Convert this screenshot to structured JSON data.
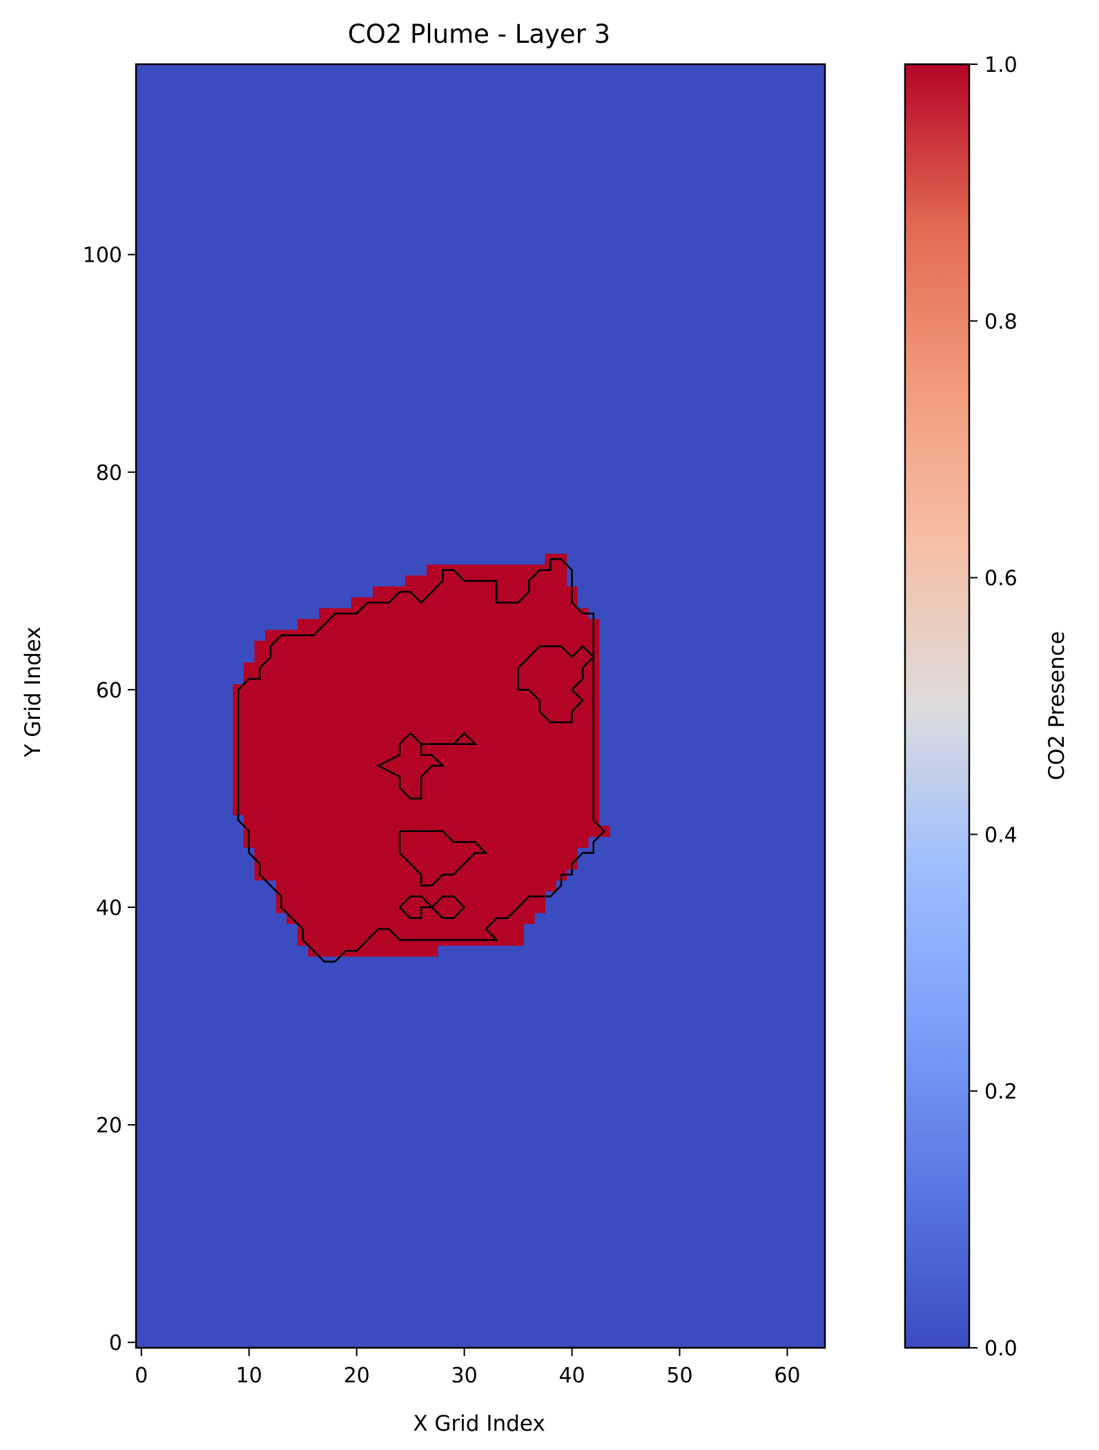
{
  "chart_data": {
    "type": "heatmap",
    "title": "CO2 Plume - Layer 3",
    "xlabel": "X Grid Index",
    "ylabel": "Y Grid Index",
    "xlim": [
      -0.5,
      63.5
    ],
    "ylim": [
      -0.5,
      117.5
    ],
    "xticks": [
      0,
      10,
      20,
      30,
      40,
      50,
      60
    ],
    "yticks": [
      0,
      20,
      40,
      60,
      80,
      100
    ],
    "grid": false,
    "colormap": "coolwarm",
    "colors": {
      "low": "#3b4cc0",
      "high": "#b40426",
      "outline": "#000000"
    },
    "colorbar": {
      "label": "CO2 Presence",
      "ticks": [
        0.0,
        0.2,
        0.4,
        0.6,
        0.8,
        1.0
      ],
      "tick_labels": [
        "0.0",
        "0.2",
        "0.4",
        "0.6",
        "0.8",
        "1.0"
      ],
      "range": [
        0.0,
        1.0
      ]
    },
    "plume_cells_value": 1.0,
    "background_value": 0.0,
    "plume_rows": [
      {
        "y": 36,
        "x0": 16,
        "x1": 27
      },
      {
        "y": 37,
        "x0": 15,
        "x1": 35
      },
      {
        "y": 38,
        "x0": 15,
        "x1": 35
      },
      {
        "y": 39,
        "x0": 14,
        "x1": 36
      },
      {
        "y": 40,
        "x0": 13,
        "x1": 37
      },
      {
        "y": 41,
        "x0": 13,
        "x1": 37
      },
      {
        "y": 42,
        "x0": 13,
        "x1": 38
      },
      {
        "y": 43,
        "x0": 11,
        "x1": 39
      },
      {
        "y": 44,
        "x0": 11,
        "x1": 40
      },
      {
        "y": 45,
        "x0": 11,
        "x1": 40
      },
      {
        "y": 46,
        "x0": 10,
        "x1": 41
      },
      {
        "y": 47,
        "x0": 10,
        "x1": 43
      },
      {
        "y": 48,
        "x0": 10,
        "x1": 42
      },
      {
        "y": 49,
        "x0": 9,
        "x1": 42
      },
      {
        "y": 50,
        "x0": 9,
        "x1": 42
      },
      {
        "y": 51,
        "x0": 9,
        "x1": 42
      },
      {
        "y": 52,
        "x0": 9,
        "x1": 42
      },
      {
        "y": 53,
        "x0": 9,
        "x1": 42
      },
      {
        "y": 54,
        "x0": 9,
        "x1": 42
      },
      {
        "y": 55,
        "x0": 9,
        "x1": 42
      },
      {
        "y": 56,
        "x0": 9,
        "x1": 42
      },
      {
        "y": 57,
        "x0": 9,
        "x1": 42
      },
      {
        "y": 58,
        "x0": 9,
        "x1": 42
      },
      {
        "y": 59,
        "x0": 9,
        "x1": 42
      },
      {
        "y": 60,
        "x0": 9,
        "x1": 42
      },
      {
        "y": 61,
        "x0": 10,
        "x1": 42
      },
      {
        "y": 62,
        "x0": 10,
        "x1": 42
      },
      {
        "y": 63,
        "x0": 11,
        "x1": 42
      },
      {
        "y": 64,
        "x0": 11,
        "x1": 42
      },
      {
        "y": 65,
        "x0": 12,
        "x1": 42
      },
      {
        "y": 66,
        "x0": 15,
        "x1": 42
      },
      {
        "y": 67,
        "x0": 17,
        "x1": 41
      },
      {
        "y": 68,
        "x0": 20,
        "x1": 40
      },
      {
        "y": 69,
        "x0": 22,
        "x1": 40
      },
      {
        "y": 70,
        "x0": 25,
        "x1": 39
      },
      {
        "y": 71,
        "x0": 27,
        "x1": 39
      },
      {
        "y": 72,
        "x0": 38,
        "x1": 39
      }
    ],
    "contours": [
      {
        "name": "outer",
        "points": [
          [
            18,
            35
          ],
          [
            17,
            35
          ],
          [
            16,
            36
          ],
          [
            15,
            37
          ],
          [
            15,
            38
          ],
          [
            14,
            39
          ],
          [
            13,
            40
          ],
          [
            13,
            41
          ],
          [
            12,
            42
          ],
          [
            11,
            43
          ],
          [
            11,
            44
          ],
          [
            10,
            45
          ],
          [
            10,
            46
          ],
          [
            10,
            47
          ],
          [
            9,
            48
          ],
          [
            9,
            50
          ],
          [
            9,
            60
          ],
          [
            10,
            61
          ],
          [
            11,
            61
          ],
          [
            11,
            62
          ],
          [
            12,
            63
          ],
          [
            12,
            64
          ],
          [
            13,
            65
          ],
          [
            16,
            65
          ],
          [
            17,
            66
          ],
          [
            18,
            67
          ],
          [
            20,
            67
          ],
          [
            21,
            68
          ],
          [
            23,
            68
          ],
          [
            24,
            69
          ],
          [
            25,
            69
          ],
          [
            26,
            68
          ],
          [
            27,
            69
          ],
          [
            28,
            70
          ],
          [
            28,
            71
          ],
          [
            29,
            71
          ],
          [
            30,
            70
          ],
          [
            32,
            70
          ],
          [
            33,
            70
          ],
          [
            33,
            69
          ],
          [
            33,
            68
          ],
          [
            35,
            68
          ],
          [
            36,
            69
          ],
          [
            36,
            70
          ],
          [
            37,
            71
          ],
          [
            38,
            71
          ],
          [
            38,
            72
          ],
          [
            39,
            72
          ],
          [
            40,
            71
          ],
          [
            40,
            70
          ],
          [
            40,
            68
          ],
          [
            41,
            67
          ],
          [
            42,
            67
          ],
          [
            42,
            66
          ],
          [
            42,
            60
          ],
          [
            42,
            48
          ],
          [
            43,
            47
          ],
          [
            42,
            46
          ],
          [
            42,
            45
          ],
          [
            41,
            45
          ],
          [
            40,
            44
          ],
          [
            40,
            43
          ],
          [
            39,
            43
          ],
          [
            39,
            42
          ],
          [
            38,
            41
          ],
          [
            37,
            41
          ],
          [
            36,
            41
          ],
          [
            35,
            40
          ],
          [
            34,
            39
          ],
          [
            33,
            39
          ],
          [
            32,
            38
          ],
          [
            33,
            37
          ],
          [
            31,
            37
          ],
          [
            30,
            37
          ],
          [
            26,
            37
          ],
          [
            24,
            37
          ],
          [
            23,
            38
          ],
          [
            22,
            38
          ],
          [
            21,
            37
          ],
          [
            20,
            36
          ],
          [
            19,
            36
          ],
          [
            18,
            35
          ]
        ]
      },
      {
        "name": "hole-upper-right",
        "points": [
          [
            38,
            64
          ],
          [
            39,
            64
          ],
          [
            40,
            63
          ],
          [
            41,
            64
          ],
          [
            42,
            63
          ],
          [
            41,
            62
          ],
          [
            41,
            61
          ],
          [
            40,
            60
          ],
          [
            41,
            59
          ],
          [
            40,
            58
          ],
          [
            40,
            57
          ],
          [
            39,
            57
          ],
          [
            38,
            57
          ],
          [
            37,
            58
          ],
          [
            37,
            59
          ],
          [
            36,
            60
          ],
          [
            35,
            60
          ],
          [
            35,
            61
          ],
          [
            35,
            62
          ],
          [
            36,
            63
          ],
          [
            37,
            64
          ],
          [
            38,
            64
          ]
        ]
      },
      {
        "name": "hole-center-cross",
        "points": [
          [
            25,
            56
          ],
          [
            24,
            55
          ],
          [
            24,
            54
          ],
          [
            22,
            53
          ],
          [
            24,
            52
          ],
          [
            24,
            51
          ],
          [
            25,
            50
          ],
          [
            26,
            50
          ],
          [
            26,
            52
          ],
          [
            27,
            53
          ],
          [
            28,
            53
          ],
          [
            27,
            54
          ],
          [
            26,
            54
          ],
          [
            26,
            55
          ],
          [
            28,
            55
          ],
          [
            29,
            55
          ],
          [
            30,
            56
          ],
          [
            31,
            55
          ],
          [
            26,
            55
          ],
          [
            25,
            56
          ]
        ]
      },
      {
        "name": "hole-lower",
        "points": [
          [
            24,
            47
          ],
          [
            28,
            47
          ],
          [
            29,
            46
          ],
          [
            31,
            46
          ],
          [
            32,
            45
          ],
          [
            31,
            45
          ],
          [
            30,
            44
          ],
          [
            29,
            43
          ],
          [
            28,
            43
          ],
          [
            27,
            42
          ],
          [
            26,
            42
          ],
          [
            26,
            43
          ],
          [
            25,
            44
          ],
          [
            24,
            45
          ],
          [
            24,
            46
          ],
          [
            24,
            47
          ]
        ]
      },
      {
        "name": "hole-lower-a",
        "points": [
          [
            26,
            41
          ],
          [
            25,
            41
          ],
          [
            24,
            40
          ],
          [
            25,
            39
          ],
          [
            26,
            39
          ],
          [
            26,
            40
          ],
          [
            27,
            40
          ],
          [
            26,
            41
          ]
        ]
      },
      {
        "name": "hole-lower-b",
        "points": [
          [
            28,
            41
          ],
          [
            27,
            40
          ],
          [
            28,
            39
          ],
          [
            29,
            39
          ],
          [
            30,
            40
          ],
          [
            29,
            41
          ],
          [
            28,
            41
          ]
        ]
      }
    ]
  }
}
